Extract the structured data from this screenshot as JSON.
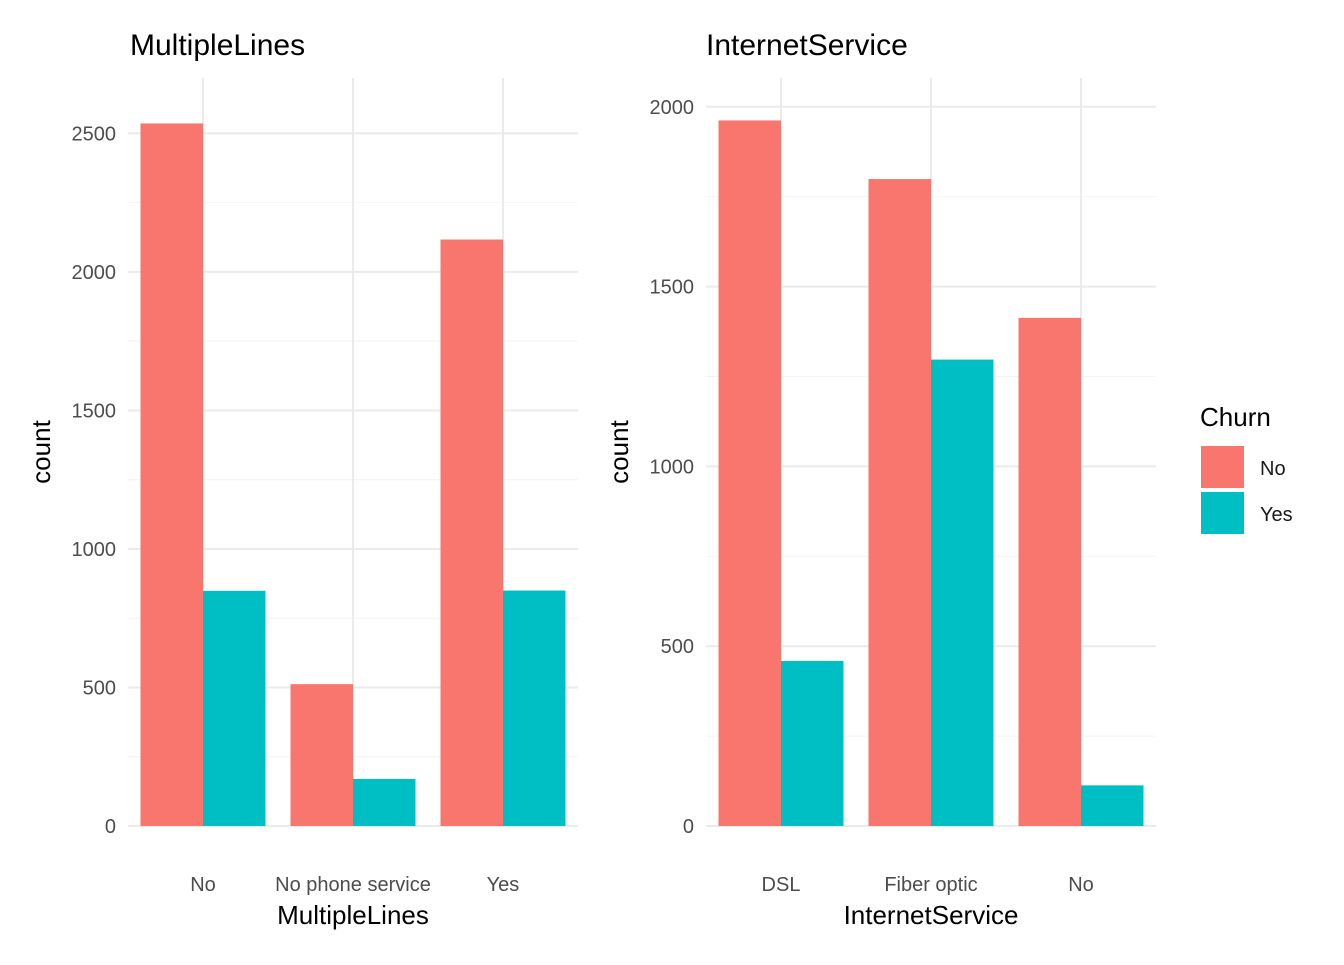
{
  "chart_data": [
    {
      "type": "bar",
      "title": "MultipleLines",
      "xlabel": "MultipleLines",
      "ylabel": "count",
      "categories": [
        "No",
        "No phone service",
        "Yes"
      ],
      "series": [
        {
          "name": "No",
          "values": [
            2536,
            512,
            2117
          ]
        },
        {
          "name": "Yes",
          "values": [
            849,
            170,
            850
          ]
        }
      ],
      "ylim": [
        0,
        2700
      ],
      "yticks": [
        0,
        500,
        1000,
        1500,
        2000,
        2500
      ],
      "grid": true
    },
    {
      "type": "bar",
      "title": "InternetService",
      "xlabel": "InternetService",
      "ylabel": "count",
      "categories": [
        "DSL",
        "Fiber optic",
        "No"
      ],
      "series": [
        {
          "name": "No",
          "values": [
            1962,
            1799,
            1413
          ]
        },
        {
          "name": "Yes",
          "values": [
            459,
            1297,
            113
          ]
        }
      ],
      "ylim": [
        0,
        2080
      ],
      "yticks": [
        0,
        500,
        1000,
        1500,
        2000
      ],
      "grid": true
    }
  ],
  "legend": {
    "title": "Churn",
    "placement": "right",
    "items": [
      {
        "label": "No",
        "color": "#F8766D"
      },
      {
        "label": "Yes",
        "color": "#00BFC4"
      }
    ]
  },
  "colors": {
    "No": "#F8766D",
    "Yes": "#00BFC4",
    "grid_major": "#EBEBEB",
    "grid_minor": "#F4F4F4"
  }
}
